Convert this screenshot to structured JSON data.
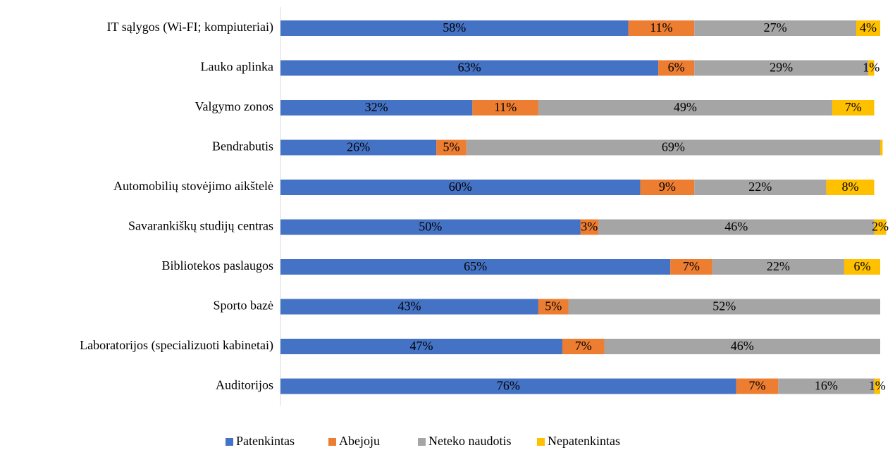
{
  "chart_data": {
    "type": "stacked-bar-horizontal",
    "categories": [
      "IT sąlygos (Wi-FI; kompiuteriai)",
      "Lauko aplinka",
      "Valgymo zonos",
      "Bendrabutis",
      "Automobilių stovėjimo aikštelė",
      "Savarankiškų studijų centras ",
      "Bibliotekos paslaugos",
      "Sporto bazė",
      "Laboratorijos (specializuoti kabinetai)",
      "Auditorijos"
    ],
    "xlim": [
      0,
      100
    ],
    "series": [
      {
        "name": "Patenkintas",
        "color": "#4472c4",
        "values": [
          58,
          63,
          32,
          26,
          60,
          50,
          65,
          43,
          47,
          76
        ],
        "value_labels": [
          "58%",
          "63%",
          "32%",
          "26%",
          "60%",
          "50%",
          "65%",
          "43%",
          "47%",
          "76%"
        ]
      },
      {
        "name": "Abejoju",
        "color": "#ed7d31",
        "values": [
          11,
          6,
          11,
          5,
          9,
          3,
          7,
          5,
          7,
          7
        ],
        "value_labels": [
          "11%",
          "6%",
          "11%",
          "5%",
          "9%",
          "3%",
          "7%",
          "5%",
          "7%",
          "7%"
        ]
      },
      {
        "name": "Neteko naudotis",
        "color": "#a5a5a5",
        "values": [
          27,
          29,
          49,
          69,
          22,
          46,
          22,
          52,
          46,
          16
        ],
        "value_labels": [
          "27%",
          "29%",
          "49%",
          "69%",
          "22%",
          "46%",
          "22%",
          "52%",
          "46%",
          "16%"
        ]
      },
      {
        "name": "Nepatenkintas",
        "color": "#ffc000",
        "values": [
          4,
          1,
          7,
          0.4,
          8,
          2,
          6,
          0,
          0,
          1
        ],
        "value_labels": [
          "4%",
          "1%",
          "7%",
          null,
          "8%",
          "2%",
          "6%",
          null,
          null,
          "1%"
        ]
      }
    ]
  }
}
